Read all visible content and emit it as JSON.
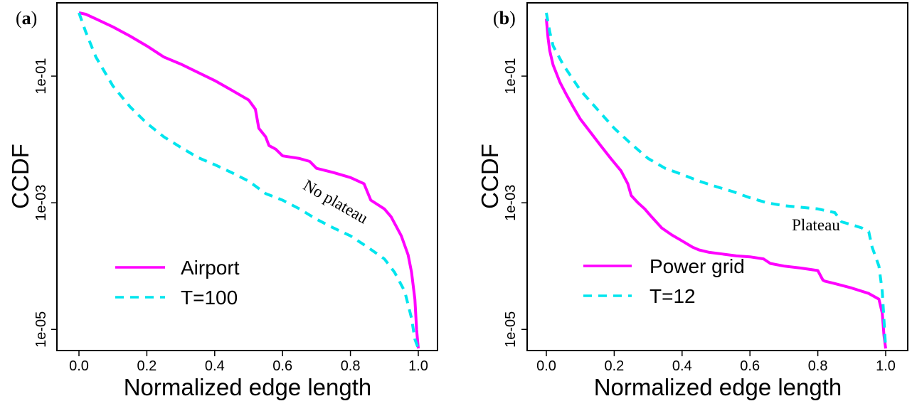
{
  "chart_data": [
    {
      "type": "line",
      "panel_label": "a",
      "xlabel": "Normalized edge length",
      "ylabel": "CCDF",
      "xlim": [
        0.0,
        1.0
      ],
      "ylim_log10": [
        -5.3,
        0.0
      ],
      "y_scale": "log",
      "x_ticks": [
        "0.0",
        "0.2",
        "0.4",
        "0.6",
        "0.8",
        "1.0"
      ],
      "y_ticks": [
        "1e-01",
        "1e-03",
        "1e-05"
      ],
      "y_tick_values": [
        0.1,
        0.001,
        1e-05
      ],
      "annotation": "No plateau",
      "legend_position": "bottom-left",
      "series": [
        {
          "name": "Airport",
          "color": "#ff00ff",
          "style": "solid",
          "x": [
            0.0,
            0.02,
            0.05,
            0.1,
            0.15,
            0.2,
            0.25,
            0.3,
            0.35,
            0.4,
            0.45,
            0.5,
            0.52,
            0.53,
            0.55,
            0.56,
            0.58,
            0.6,
            0.65,
            0.68,
            0.7,
            0.75,
            0.8,
            0.84,
            0.86,
            0.9,
            0.92,
            0.95,
            0.97,
            0.98,
            0.99,
            0.995,
            1.0
          ],
          "y": [
            1.0,
            0.95,
            0.8,
            0.6,
            0.43,
            0.3,
            0.2,
            0.155,
            0.115,
            0.085,
            0.06,
            0.042,
            0.03,
            0.015,
            0.011,
            0.008,
            0.007,
            0.0055,
            0.005,
            0.0045,
            0.0035,
            0.003,
            0.0025,
            0.002,
            0.0011,
            0.0008,
            0.0006,
            0.0003,
            0.00015,
            8e-05,
            3e-05,
            1e-05,
            5e-06
          ]
        },
        {
          "name": "T=100",
          "color": "#00e5ee",
          "style": "dashed",
          "x": [
            0.0,
            0.02,
            0.05,
            0.1,
            0.15,
            0.2,
            0.25,
            0.3,
            0.35,
            0.4,
            0.45,
            0.5,
            0.55,
            0.6,
            0.65,
            0.7,
            0.75,
            0.8,
            0.85,
            0.9,
            0.93,
            0.96,
            0.98,
            0.99,
            1.0
          ],
          "y": [
            1.0,
            0.5,
            0.2,
            0.07,
            0.033,
            0.018,
            0.011,
            0.0075,
            0.0052,
            0.004,
            0.003,
            0.0022,
            0.0014,
            0.0011,
            0.0008,
            0.00055,
            0.0004,
            0.0003,
            0.0002,
            0.00013,
            8e-05,
            4e-05,
            1.5e-05,
            7e-06,
            5e-06
          ]
        }
      ]
    },
    {
      "type": "line",
      "panel_label": "b",
      "xlabel": "Normalized edge length",
      "ylabel": "CCDF",
      "xlim": [
        0.0,
        1.0
      ],
      "ylim_log10": [
        -5.3,
        0.0
      ],
      "y_scale": "log",
      "x_ticks": [
        "0.0",
        "0.2",
        "0.4",
        "0.6",
        "0.8",
        "1.0"
      ],
      "y_ticks": [
        "1e-01",
        "1e-03",
        "1e-05"
      ],
      "y_tick_values": [
        0.1,
        0.001,
        1e-05
      ],
      "annotation": "Plateau",
      "legend_position": "bottom-left",
      "series": [
        {
          "name": "Power grid",
          "color": "#ff00ff",
          "style": "solid",
          "x": [
            0.0,
            0.005,
            0.01,
            0.02,
            0.04,
            0.06,
            0.08,
            0.1,
            0.13,
            0.16,
            0.19,
            0.22,
            0.24,
            0.25,
            0.27,
            0.29,
            0.31,
            0.34,
            0.37,
            0.4,
            0.43,
            0.45,
            0.48,
            0.52,
            0.56,
            0.6,
            0.64,
            0.66,
            0.7,
            0.75,
            0.8,
            0.815,
            0.82,
            0.85,
            0.9,
            0.95,
            0.98,
            0.99,
            0.995,
            1.0
          ],
          "y": [
            0.8,
            0.4,
            0.25,
            0.15,
            0.08,
            0.05,
            0.032,
            0.021,
            0.013,
            0.008,
            0.005,
            0.0032,
            0.002,
            0.0013,
            0.001,
            0.0008,
            0.0006,
            0.0004,
            0.00031,
            0.00025,
            0.0002,
            0.00018,
            0.000165,
            0.000155,
            0.000145,
            0.00014,
            0.00013,
            0.00011,
            0.0001,
            9.3e-05,
            8.5e-05,
            6e-05,
            5.8e-05,
            5.3e-05,
            4.5e-05,
            3.7e-05,
            3e-05,
            1.8e-05,
            8e-06,
            5e-06
          ]
        },
        {
          "name": "T=12",
          "color": "#00e5ee",
          "style": "dashed",
          "x": [
            0.0,
            0.01,
            0.02,
            0.05,
            0.1,
            0.15,
            0.2,
            0.25,
            0.3,
            0.35,
            0.4,
            0.45,
            0.5,
            0.55,
            0.6,
            0.65,
            0.7,
            0.75,
            0.8,
            0.85,
            0.87,
            0.9,
            0.93,
            0.95,
            0.96,
            0.98,
            0.99,
            1.0
          ],
          "y": [
            1.0,
            0.5,
            0.3,
            0.15,
            0.06,
            0.03,
            0.015,
            0.0085,
            0.005,
            0.0035,
            0.0028,
            0.0022,
            0.0018,
            0.0015,
            0.0012,
            0.001,
            0.0009,
            0.00085,
            0.0008,
            0.0007,
            0.0005,
            0.00045,
            0.0004,
            0.00035,
            0.0002,
            0.0001,
            4e-05,
            5e-06
          ]
        }
      ]
    }
  ]
}
